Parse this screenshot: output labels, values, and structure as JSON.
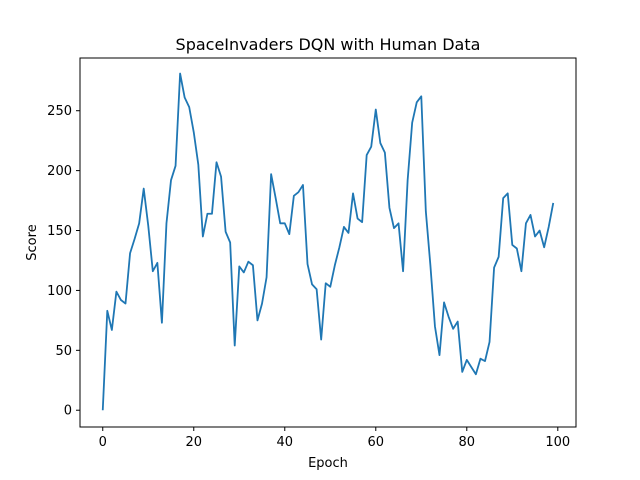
{
  "chart_data": {
    "type": "line",
    "title": "SpaceInvaders DQN with Human Data",
    "xlabel": "Epoch",
    "ylabel": "Score",
    "xlim": [
      -5,
      104
    ],
    "ylim": [
      -14,
      294
    ],
    "xticks": [
      0,
      20,
      40,
      60,
      80,
      100
    ],
    "yticks": [
      0,
      50,
      100,
      150,
      200,
      250
    ],
    "grid": false,
    "legend": "none",
    "line_color": "#1f77b4",
    "series": [
      {
        "x": [
          0,
          1,
          2,
          3,
          4,
          5,
          6,
          7,
          8,
          9,
          10,
          11,
          12,
          13,
          14,
          15,
          16,
          17,
          18,
          19,
          20,
          21,
          22,
          23,
          24,
          25,
          26,
          27,
          28,
          29,
          30,
          31,
          32,
          33,
          34,
          35,
          36,
          37,
          38,
          39,
          40,
          41,
          42,
          43,
          44,
          45,
          46,
          47,
          48,
          49,
          50,
          51,
          52,
          53,
          54,
          55,
          56,
          57,
          58,
          59,
          60,
          61,
          62,
          63,
          64,
          65,
          66,
          67,
          68,
          69,
          70,
          71,
          72,
          73,
          74,
          75,
          76,
          77,
          78,
          79,
          80,
          81,
          82,
          83,
          84,
          85,
          86,
          87,
          88,
          89,
          90,
          91,
          92,
          93,
          94,
          95,
          96,
          97,
          98,
          99
        ],
        "values": [
          0,
          83,
          67,
          99,
          92,
          89,
          131,
          143,
          156,
          185,
          154,
          116,
          123,
          73,
          156,
          192,
          204,
          281,
          261,
          253,
          232,
          205,
          145,
          164,
          164,
          207,
          195,
          149,
          140,
          54,
          120,
          115,
          124,
          121,
          75,
          89,
          111,
          197,
          177,
          156,
          156,
          147,
          179,
          182,
          188,
          122,
          105,
          101,
          59,
          106,
          103,
          121,
          136,
          153,
          148,
          181,
          160,
          157,
          213,
          220,
          251,
          223,
          215,
          169,
          152,
          156,
          116,
          192,
          240,
          257,
          262,
          166,
          121,
          70,
          46,
          90,
          78,
          68,
          74,
          32,
          42,
          36,
          30,
          43,
          41,
          57,
          119,
          128,
          177,
          181,
          138,
          135,
          116,
          156,
          163,
          145,
          150,
          136,
          153,
          173
        ]
      }
    ]
  }
}
